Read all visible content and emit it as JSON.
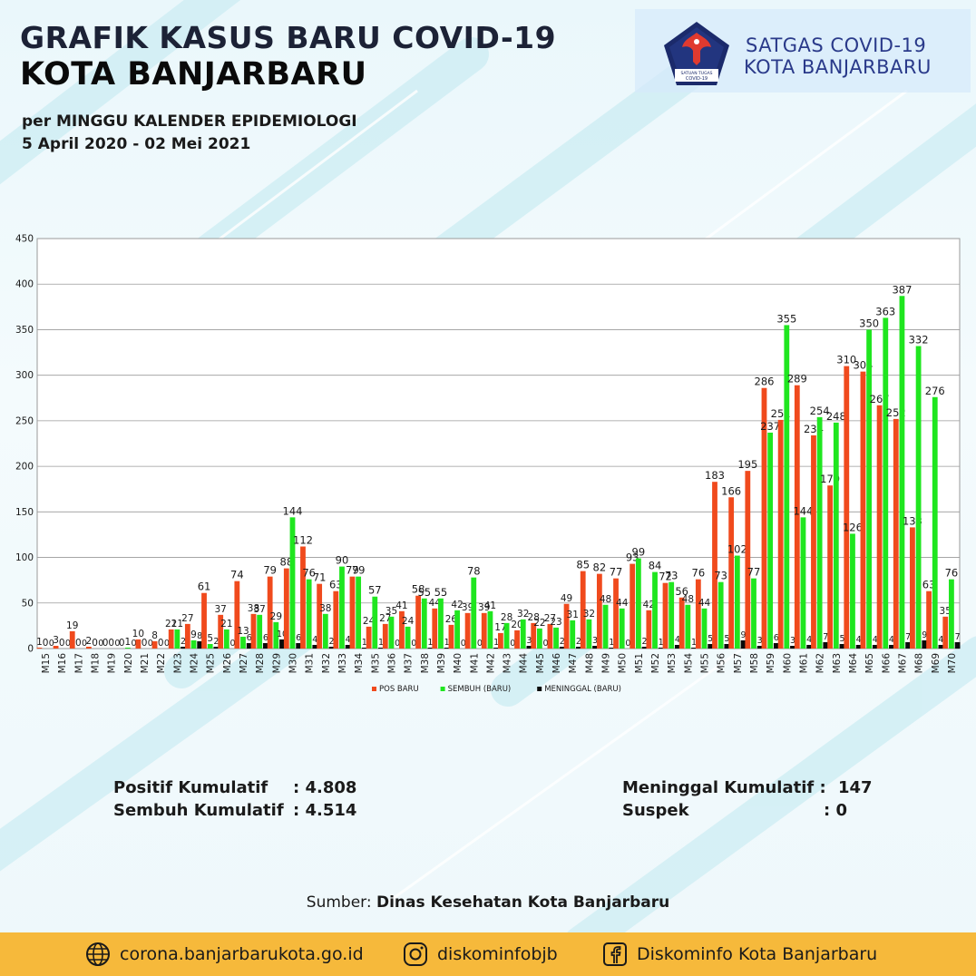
{
  "header": {
    "title_line1": "GRAFIK KASUS BARU COVID-19",
    "title_line2": "KOTA BANJARBARU",
    "subtitle_line1": "per MINGGU KALENDER EPIDEMIOLOGI",
    "subtitle_line2": "5 April 2020 - 02 Mei 2021",
    "org_line1": "SATGAS COVID-19",
    "org_line2": "KOTA BANJARBARU",
    "logo_text": "SATUAN TUGAS PENANGANAN COVID-19"
  },
  "chart_data": {
    "type": "bar",
    "categories": [
      "M15",
      "M16",
      "M17",
      "M18",
      "M19",
      "M20",
      "M21",
      "M22",
      "M23",
      "M24",
      "M25",
      "M26",
      "M27",
      "M28",
      "M29",
      "M30",
      "M31",
      "M32",
      "M33",
      "M34",
      "M35",
      "M36",
      "M37",
      "M38",
      "M39",
      "M40",
      "M41",
      "M42",
      "M43",
      "M44",
      "M45",
      "M46",
      "M47",
      "M48",
      "M49",
      "M50",
      "M51",
      "M52",
      "M53",
      "M54",
      "M55",
      "M56",
      "M57",
      "M58",
      "M59",
      "M60",
      "M61",
      "M62",
      "M63",
      "M64",
      "M65",
      "M66",
      "M67",
      "M68",
      "M69",
      "M70"
    ],
    "series": [
      {
        "name": "POS BARU",
        "color": "#f04a1d",
        "values": [
          1,
          3,
          19,
          2,
          0,
          0,
          10,
          8,
          21,
          27,
          61,
          37,
          74,
          38,
          79,
          88,
          112,
          71,
          63,
          79,
          24,
          27,
          41,
          58,
          44,
          26,
          39,
          39,
          17,
          20,
          28,
          27,
          49,
          85,
          82,
          77,
          93,
          42,
          72,
          56,
          76,
          183,
          166,
          195,
          286,
          251,
          289,
          234,
          179,
          310,
          304,
          267,
          252,
          133,
          63,
          35
        ]
      },
      {
        "name": "SEMBUH (BARU)",
        "color": "#1fe61f",
        "values": [
          0,
          0,
          0,
          0,
          0,
          1,
          0,
          0,
          21,
          9,
          5,
          21,
          13,
          37,
          29,
          144,
          76,
          38,
          90,
          79,
          57,
          35,
          24,
          55,
          55,
          42,
          78,
          41,
          28,
          32,
          22,
          23,
          31,
          32,
          48,
          44,
          99,
          84,
          73,
          48,
          44,
          73,
          102,
          77,
          237,
          355,
          144,
          254,
          248,
          126,
          350,
          363,
          387,
          332,
          276,
          76
        ]
      },
      {
        "name": "MENINGGAL (BARU)",
        "color": "#0a0a0a",
        "values": [
          0,
          0,
          0,
          0,
          0,
          0,
          0,
          0,
          2,
          8,
          2,
          0,
          6,
          6,
          10,
          6,
          4,
          2,
          4,
          1,
          1,
          0,
          0,
          1,
          1,
          0,
          0,
          1,
          0,
          3,
          0,
          2,
          2,
          3,
          1,
          0,
          2,
          1,
          4,
          1,
          5,
          5,
          9,
          3,
          6,
          3,
          4,
          7,
          5,
          4,
          4,
          4,
          7,
          9,
          4,
          7
        ]
      }
    ],
    "ylim": [
      0,
      450
    ],
    "yticks": [
      0,
      50,
      100,
      150,
      200,
      250,
      300,
      350,
      400,
      450
    ],
    "grid": true,
    "legend_position": "bottom"
  },
  "stats": {
    "positive_label": "Positif Kumulatif",
    "positive_value": ": 4.808",
    "recovered_label": "Sembuh Kumulatif",
    "recovered_value": ": 4.514",
    "death_label": "Meninggal Kumulatif :",
    "death_value": "147",
    "suspect_label": "Suspek",
    "suspect_value": ":  0"
  },
  "source": {
    "prefix": "Sumber: ",
    "name": "Dinas Kesehatan Kota Banjarbaru"
  },
  "footer": {
    "website": "corona.banjarbarukota.go.id",
    "instagram": "diskominfobjb",
    "facebook": "Diskominfo Kota Banjarbaru"
  }
}
